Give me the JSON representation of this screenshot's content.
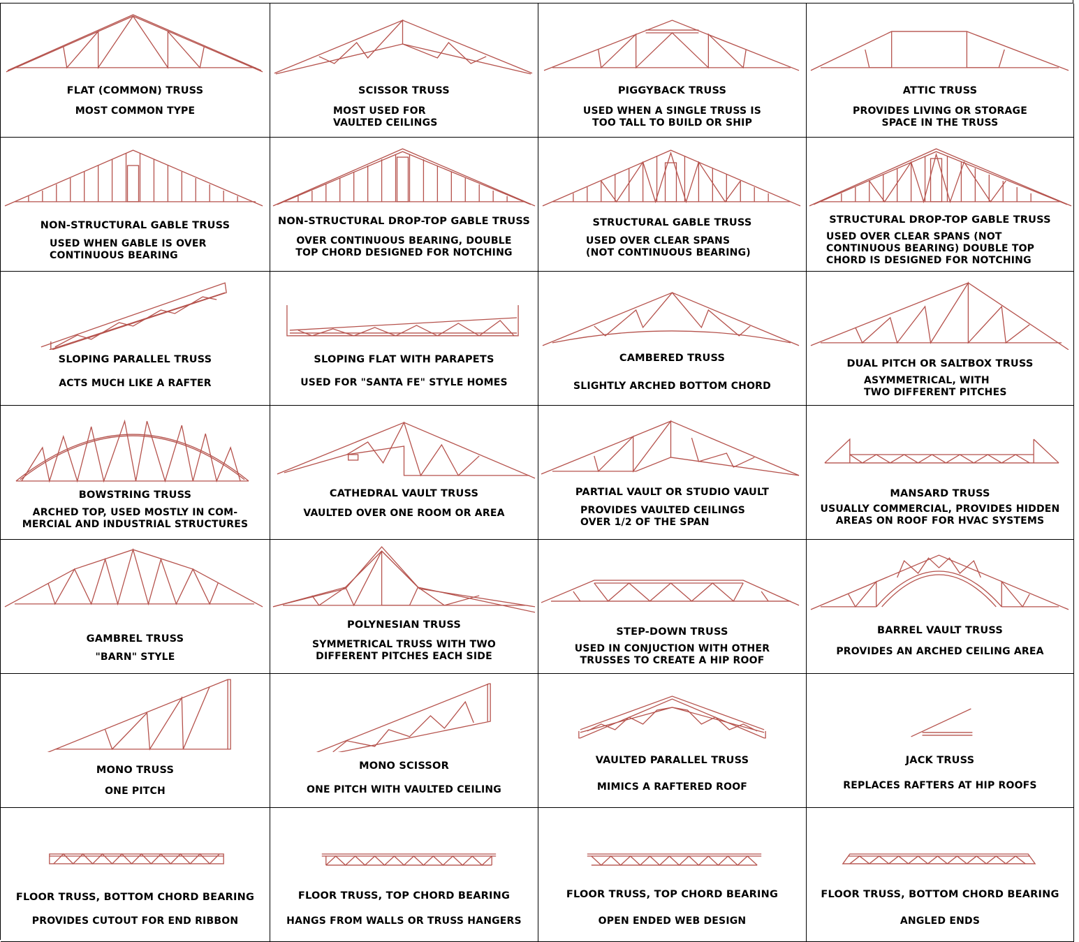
{
  "colors": {
    "truss": "#b5524c",
    "grid": "#000000",
    "text": "#000000"
  },
  "cells": [
    {
      "title": "Flat (Common) Truss",
      "desc": "Most common type"
    },
    {
      "title": "Scissor Truss",
      "desc": "Most used for\nvaulted ceilings"
    },
    {
      "title": "Piggyback Truss",
      "desc": "Used when a single truss is\ntoo tall to build or ship"
    },
    {
      "title": "Attic Truss",
      "desc": "Provides living or storage\nspace in the truss"
    },
    {
      "title": "Non-Structural Gable Truss",
      "desc": "Used when gable is over\ncontinuous bearing"
    },
    {
      "title": "Non-Structural Drop-Top Gable Truss",
      "desc": "Over continuous bearing, double\ntop chord designed for notching"
    },
    {
      "title": "Structural Gable Truss",
      "desc": "Used over clear spans\n(not continuous bearing)"
    },
    {
      "title": "Structural Drop-Top Gable Truss",
      "desc": "Used over clear spans (not\ncontinuous bearing) double top\nchord is designed for notching"
    },
    {
      "title": "Sloping Parallel Truss",
      "desc": "Acts much like a rafter"
    },
    {
      "title": "Sloping Flat with Parapets",
      "desc": "Used for \"Santa Fe\" style homes"
    },
    {
      "title": "Cambered Truss",
      "desc": "Slightly arched bottom chord"
    },
    {
      "title": "Dual Pitch or Saltbox Truss",
      "desc": "Asymmetrical, with\ntwo different pitches"
    },
    {
      "title": "Bowstring Truss",
      "desc": "Arched top, used mostly in com-\nmercial and industrial structures"
    },
    {
      "title": "Cathedral Vault Truss",
      "desc": "Vaulted over one room or area"
    },
    {
      "title": "Partial Vault or Studio Vault",
      "desc": "Provides vaulted ceilings\nover 1/2 of the span"
    },
    {
      "title": "Mansard Truss",
      "desc": "Usually commercial, provides hidden\nareas on roof for HVAC systems"
    },
    {
      "title": "Gambrel Truss",
      "desc": "\"Barn\" style"
    },
    {
      "title": "Polynesian Truss",
      "desc": "Symmetrical truss with two\ndifferent pitches each side"
    },
    {
      "title": "Step-Down Truss",
      "desc": "Used in conjuction with other\ntrusses to create a hip roof"
    },
    {
      "title": "Barrel Vault Truss",
      "desc": "Provides an arched ceiling area"
    },
    {
      "title": "Mono Truss",
      "desc": "One pitch"
    },
    {
      "title": "Mono Scissor",
      "desc": "One pitch with vaulted ceiling"
    },
    {
      "title": "Vaulted Parallel Truss",
      "desc": "Mimics a raftered roof"
    },
    {
      "title": "Jack Truss",
      "desc": "Replaces rafters at hip roofs"
    },
    {
      "title": "Floor Truss, Bottom Chord Bearing",
      "desc": "Provides cutout for end ribbon"
    },
    {
      "title": "Floor Truss, Top Chord Bearing",
      "desc": "Hangs from walls or truss hangers"
    },
    {
      "title": "Floor Truss, Top Chord Bearing",
      "desc": "Open ended web design"
    },
    {
      "title": "Floor Truss, Bottom Chord Bearing",
      "desc": "Angled ends"
    }
  ]
}
